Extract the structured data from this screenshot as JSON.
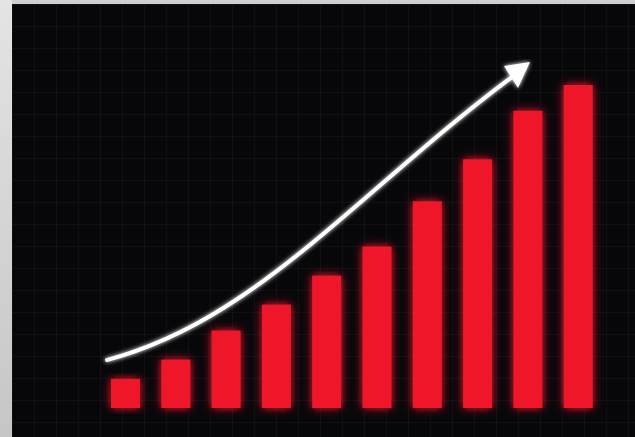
{
  "chart_data": {
    "type": "bar",
    "categories": [
      "",
      "",
      "",
      "",
      "",
      "",
      "",
      "",
      "",
      ""
    ],
    "values": [
      9,
      15,
      24,
      32,
      41,
      50,
      64,
      77,
      92,
      100
    ],
    "ylim": [
      0,
      100
    ],
    "grid": true,
    "trend_arrow": true,
    "colors": {
      "bar": "#f0192c",
      "bar_glow": "#ff2a3a",
      "axes": "#ffffff",
      "background": "#07070a"
    }
  }
}
